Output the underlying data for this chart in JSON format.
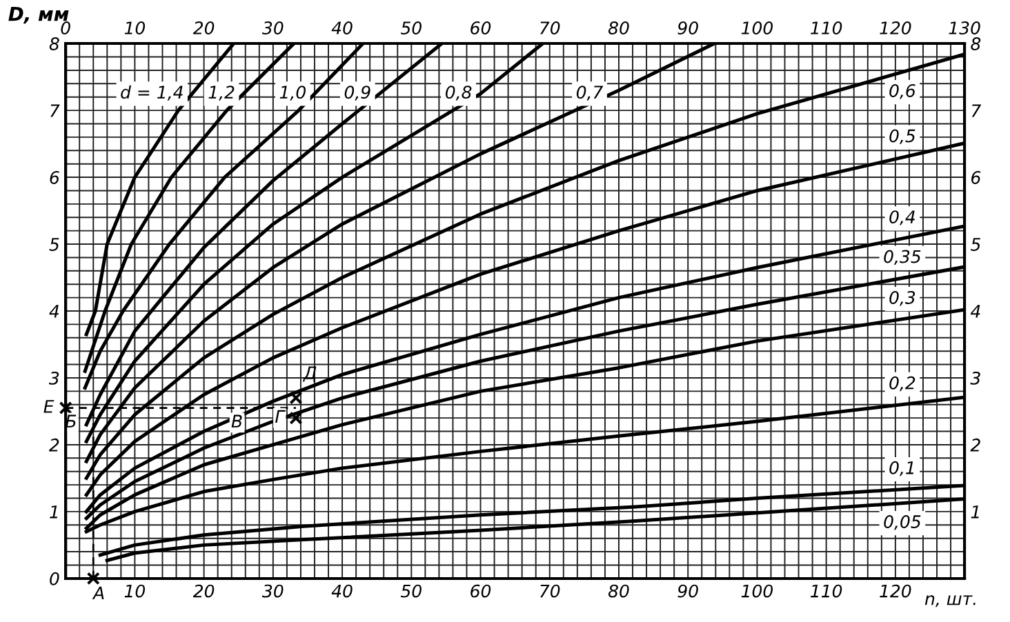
{
  "chart_data": {
    "type": "line",
    "xlabel": "n, шт.",
    "ylabel": "D, мм",
    "xlim": [
      0,
      130
    ],
    "ylim": [
      0,
      8
    ],
    "x2lim": [
      0,
      130
    ],
    "y2lim": [
      0,
      8
    ],
    "xticks": [
      {
        "value": 0,
        "label": null
      },
      {
        "value": 2,
        "label": null
      },
      {
        "value": 4,
        "label": null
      },
      {
        "value": 6,
        "label": null
      },
      {
        "value": 8,
        "label": null
      },
      10,
      {
        "value": 12,
        "label": null
      },
      {
        "value": 14,
        "label": null
      },
      {
        "value": 16,
        "label": null
      },
      {
        "value": 18,
        "label": null
      },
      20,
      {
        "value": 22,
        "label": null
      },
      {
        "value": 24,
        "label": null
      },
      {
        "value": 26,
        "label": null
      },
      {
        "value": 28,
        "label": null
      },
      30,
      {
        "value": 32,
        "label": null
      },
      {
        "value": 34,
        "label": null
      },
      {
        "value": 36,
        "label": null
      },
      {
        "value": 38,
        "label": null
      },
      40,
      {
        "value": 42,
        "label": null
      },
      {
        "value": 44,
        "label": null
      },
      {
        "value": 46,
        "label": null
      },
      {
        "value": 48,
        "label": null
      },
      50,
      {
        "value": 52,
        "label": null
      },
      {
        "value": 54,
        "label": null
      },
      {
        "value": 56,
        "label": null
      },
      {
        "value": 58,
        "label": null
      },
      60,
      {
        "value": 62,
        "label": null
      },
      {
        "value": 64,
        "label": null
      },
      {
        "value": 66,
        "label": null
      },
      {
        "value": 68,
        "label": null
      },
      70,
      {
        "value": 72,
        "label": null
      },
      {
        "value": 74,
        "label": null
      },
      {
        "value": 76,
        "label": null
      },
      {
        "value": 78,
        "label": null
      },
      80,
      {
        "value": 82,
        "label": null
      },
      {
        "value": 84,
        "label": null
      },
      {
        "value": 86,
        "label": null
      },
      {
        "value": 88,
        "label": null
      },
      90,
      {
        "value": 92,
        "label": null
      },
      {
        "value": 94,
        "label": null
      },
      {
        "value": 96,
        "label": null
      },
      {
        "value": 98,
        "label": null
      },
      100,
      {
        "value": 102,
        "label": null
      },
      {
        "value": 104,
        "label": null
      },
      {
        "value": 106,
        "label": null
      },
      {
        "value": 108,
        "label": null
      },
      110,
      {
        "value": 112,
        "label": null
      },
      {
        "value": 114,
        "label": null
      },
      {
        "value": 116,
        "label": null
      },
      {
        "value": 118,
        "label": null
      },
      120,
      {
        "value": 122,
        "label": null
      },
      {
        "value": 124,
        "label": null
      },
      {
        "value": 126,
        "label": null
      },
      {
        "value": 128,
        "label": null
      },
      {
        "value": 130,
        "label": null
      }
    ],
    "x2ticks": [
      0,
      10,
      20,
      30,
      40,
      50,
      60,
      70,
      80,
      90,
      100,
      110,
      120,
      130
    ],
    "yticks": [
      0,
      {
        "value": 0.2,
        "label": null
      },
      {
        "value": 0.4,
        "label": null
      },
      {
        "value": 0.6,
        "label": null
      },
      {
        "value": 0.8,
        "label": null
      },
      1,
      {
        "value": 1.2,
        "label": null
      },
      {
        "value": 1.4,
        "label": null
      },
      {
        "value": 1.6,
        "label": null
      },
      {
        "value": 1.8,
        "label": null
      },
      2,
      {
        "value": 2.2,
        "label": null
      },
      {
        "value": 2.4,
        "label": null
      },
      {
        "value": 2.6,
        "label": null
      },
      {
        "value": 2.8,
        "label": null
      },
      3,
      {
        "value": 3.2,
        "label": null
      },
      {
        "value": 3.4,
        "label": null
      },
      {
        "value": 3.6,
        "label": null
      },
      {
        "value": 3.8,
        "label": null
      },
      4,
      {
        "value": 4.2,
        "label": null
      },
      {
        "value": 4.4,
        "label": null
      },
      {
        "value": 4.6,
        "label": null
      },
      {
        "value": 4.8,
        "label": null
      },
      5,
      {
        "value": 5.2,
        "label": null
      },
      {
        "value": 5.4,
        "label": null
      },
      {
        "value": 5.6,
        "label": null
      },
      {
        "value": 5.8,
        "label": null
      },
      6,
      {
        "value": 6.2,
        "label": null
      },
      {
        "value": 6.4,
        "label": null
      },
      {
        "value": 6.6,
        "label": null
      },
      {
        "value": 6.8,
        "label": null
      },
      7,
      {
        "value": 7.2,
        "label": null
      },
      {
        "value": 7.4,
        "label": null
      },
      {
        "value": 7.6,
        "label": null
      },
      {
        "value": 7.8,
        "label": null
      },
      8
    ],
    "y2ticks": [
      {
        "value": 0,
        "label": null
      },
      1,
      2,
      3,
      4,
      5,
      6,
      7,
      8
    ],
    "grid": true,
    "series": [
      {
        "name": "d = 1,4",
        "color": "#000000",
        "x": [
          3,
          4.3,
          6,
          10,
          16.3,
          24.3
        ],
        "values": [
          3.65,
          4,
          5,
          6,
          7,
          8
        ]
      },
      {
        "name": "1,2",
        "color": "#000000",
        "x": [
          2.8,
          5.7,
          9.5,
          15.3,
          23.3,
          33
        ],
        "values": [
          3.1,
          4,
          5,
          6,
          7,
          8
        ]
      },
      {
        "name": "1,0",
        "color": "#000000",
        "x": [
          2.8,
          5,
          8.3,
          15,
          23,
          33.7,
          43
        ],
        "values": [
          2.85,
          3.4,
          4,
          5,
          6,
          7,
          8
        ]
      },
      {
        "name": "0,9",
        "color": "#000000",
        "x": [
          3,
          5,
          10,
          20,
          30,
          40,
          54.4
        ],
        "values": [
          2.3,
          2.75,
          3.7,
          4.95,
          5.95,
          6.8,
          8
        ]
      },
      {
        "name": "0,8",
        "color": "#000000",
        "x": [
          3,
          5,
          10,
          20,
          30,
          40,
          60,
          69
        ],
        "values": [
          2.05,
          2.45,
          3.25,
          4.4,
          5.3,
          6.0,
          7.25,
          8
        ]
      },
      {
        "name": "0,7",
        "color": "#000000",
        "x": [
          3,
          5,
          10,
          20,
          30,
          40,
          60,
          80,
          93.8
        ],
        "values": [
          1.75,
          2.15,
          2.85,
          3.85,
          4.65,
          5.3,
          6.35,
          7.3,
          8
        ]
      },
      {
        "name": "0,6",
        "color": "#000000",
        "x": [
          3,
          5,
          10,
          20,
          30,
          40,
          60,
          80,
          100,
          130
        ],
        "values": [
          1.5,
          1.85,
          2.45,
          3.3,
          3.95,
          4.5,
          5.45,
          6.25,
          6.95,
          7.84
        ]
      },
      {
        "name": "0,5",
        "color": "#000000",
        "x": [
          3,
          5,
          10,
          20,
          30,
          40,
          60,
          80,
          100,
          130
        ],
        "values": [
          1.25,
          1.55,
          2.05,
          2.75,
          3.3,
          3.75,
          4.55,
          5.2,
          5.8,
          6.51
        ]
      },
      {
        "name": "0,4",
        "color": "#000000",
        "x": [
          3,
          5,
          10,
          20,
          30,
          40,
          60,
          80,
          100,
          130
        ],
        "values": [
          1.0,
          1.25,
          1.65,
          2.2,
          2.65,
          3.05,
          3.65,
          4.2,
          4.65,
          5.27
        ]
      },
      {
        "name": "0,35",
        "color": "#000000",
        "x": [
          3,
          5,
          10,
          20,
          30,
          40,
          60,
          80,
          100,
          130
        ],
        "values": [
          0.9,
          1.1,
          1.45,
          1.95,
          2.35,
          2.7,
          3.25,
          3.7,
          4.1,
          4.66
        ]
      },
      {
        "name": "0,3",
        "color": "#000000",
        "x": [
          3,
          5,
          10,
          20,
          30,
          40,
          60,
          80,
          100,
          130
        ],
        "values": [
          0.75,
          0.95,
          1.25,
          1.7,
          2.0,
          2.3,
          2.8,
          3.15,
          3.55,
          4.02
        ]
      },
      {
        "name": "0,2",
        "color": "#000000",
        "x": [
          3,
          5,
          10,
          20,
          30,
          40,
          60,
          80,
          100,
          130
        ],
        "values": [
          0.7,
          0.8,
          1.0,
          1.3,
          1.48,
          1.65,
          1.9,
          2.13,
          2.35,
          2.71
        ]
      },
      {
        "name": "0,1",
        "color": "#000000",
        "x": [
          5,
          10,
          20,
          34.4,
          60,
          82.4,
          100,
          130
        ],
        "values": [
          0.35,
          0.5,
          0.65,
          0.78,
          0.95,
          1.07,
          1.2,
          1.39
        ]
      },
      {
        "name": "0,05",
        "color": "#000000",
        "x": [
          6,
          10,
          20,
          34.4,
          60,
          82.4,
          100,
          130
        ],
        "values": [
          0.27,
          0.38,
          0.5,
          0.58,
          0.72,
          0.86,
          0.98,
          1.19
        ]
      },
      {
        "type": "line",
        "line_style": "dashed",
        "color": "#000000",
        "x": [
          4,
          4
        ],
        "values": [
          0,
          2.55
        ]
      },
      {
        "type": "line",
        "line_style": "dashed",
        "color": "#000000",
        "x": [
          0,
          33.3
        ],
        "values": [
          2.55,
          2.55
        ]
      },
      {
        "type": "scatter",
        "marker": "cross",
        "color": "#000000",
        "x": [
          4,
          0,
          33.3,
          33.3
        ],
        "values": [
          0,
          2.55,
          2.7,
          2.4
        ]
      }
    ],
    "annotations": [
      {
        "text": "А",
        "x": 4,
        "y": 0
      },
      {
        "text": "Е",
        "x": 0,
        "y": 2.55
      },
      {
        "text": "Б",
        "x": 3.3,
        "y": 2.33
      },
      {
        "text": "В",
        "x": 27.3,
        "y": 2.33
      },
      {
        "text": "Д",
        "x": 33.3,
        "y": 2.7
      },
      {
        "text": "Г",
        "x": 33.3,
        "y": 2.4
      }
    ]
  }
}
